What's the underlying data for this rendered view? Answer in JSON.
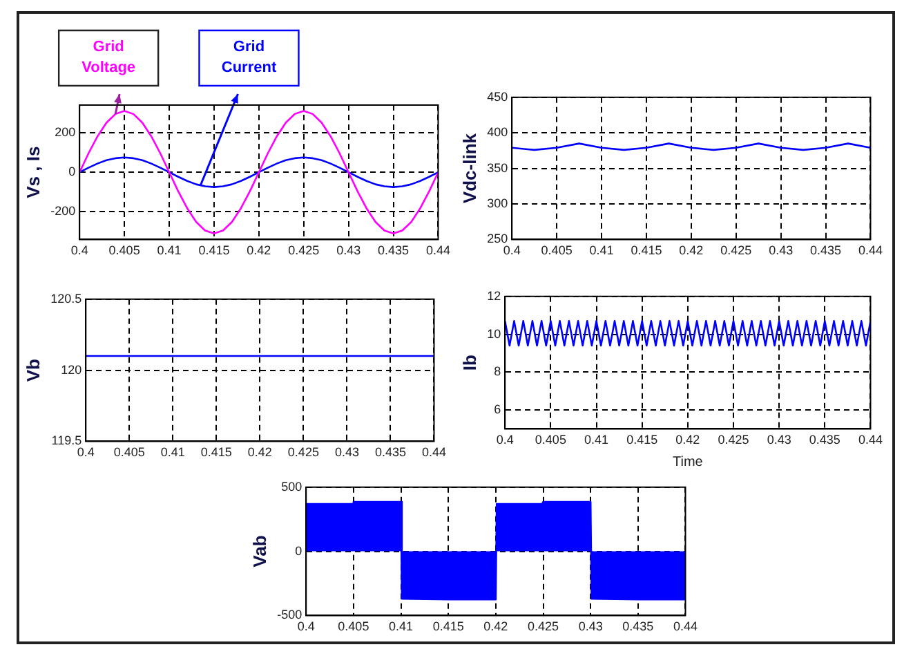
{
  "chart_data": [
    {
      "type": "line",
      "ylabel": "Vs , Is",
      "x": [
        0.4,
        0.401,
        0.402,
        0.403,
        0.404,
        0.405,
        0.406,
        0.407,
        0.408,
        0.409,
        0.41,
        0.411,
        0.412,
        0.413,
        0.414,
        0.415,
        0.416,
        0.417,
        0.418,
        0.419,
        0.42,
        0.421,
        0.422,
        0.423,
        0.424,
        0.425,
        0.426,
        0.427,
        0.428,
        0.429,
        0.43,
        0.431,
        0.432,
        0.433,
        0.434,
        0.435,
        0.436,
        0.437,
        0.438,
        0.439,
        0.44
      ],
      "series": [
        {
          "color": "#ff00ff",
          "values": [
            0,
            96,
            182,
            251,
            295,
            310,
            295,
            251,
            182,
            96,
            0,
            -96,
            -182,
            -251,
            -295,
            -310,
            -295,
            -251,
            -182,
            -96,
            0,
            96,
            182,
            251,
            295,
            310,
            295,
            251,
            182,
            96,
            0,
            -96,
            -182,
            -251,
            -295,
            -310,
            -295,
            -251,
            -182,
            -96,
            0
          ]
        },
        {
          "color": "#0000ff",
          "values": [
            0,
            23,
            44,
            61,
            71,
            75,
            71,
            61,
            44,
            23,
            0,
            -23,
            -44,
            -61,
            -71,
            -75,
            -71,
            -61,
            -44,
            -23,
            0,
            23,
            44,
            61,
            71,
            75,
            71,
            61,
            44,
            23,
            0,
            -23,
            -44,
            -61,
            -71,
            -75,
            -71,
            -61,
            -44,
            -23,
            0
          ]
        }
      ],
      "annotations": [
        {
          "text": "Grid Voltage",
          "x": 0.404,
          "y": 295
        },
        {
          "text": "Grid Current",
          "x": 0.4135,
          "y": -65
        }
      ],
      "xlim": [
        0.4,
        0.44
      ],
      "xticks": [
        0.4,
        0.405,
        0.41,
        0.415,
        0.42,
        0.425,
        0.43,
        0.435,
        0.44
      ],
      "ylim": [
        -340,
        340
      ],
      "yticks": [
        -200,
        0,
        200
      ],
      "grid": true,
      "legend": false
    },
    {
      "type": "line",
      "ylabel": "Vdc-link",
      "x": [
        0.4,
        0.4025,
        0.405,
        0.4075,
        0.41,
        0.4125,
        0.415,
        0.4175,
        0.42,
        0.4225,
        0.425,
        0.4275,
        0.43,
        0.4325,
        0.435,
        0.4375,
        0.44
      ],
      "series": [
        {
          "color": "#0000ff",
          "values": [
            379,
            376,
            379,
            385,
            379,
            376,
            379,
            385,
            379,
            376,
            379,
            385,
            379,
            376,
            379,
            385,
            379
          ]
        }
      ],
      "xlim": [
        0.4,
        0.44
      ],
      "xticks": [
        0.4,
        0.405,
        0.41,
        0.415,
        0.42,
        0.425,
        0.43,
        0.435,
        0.44
      ],
      "ylim": [
        250,
        450
      ],
      "yticks": [
        250,
        300,
        350,
        400,
        450
      ],
      "grid": true,
      "legend": false
    },
    {
      "type": "line",
      "ylabel": "Vb",
      "x": [
        0.4,
        0.44
      ],
      "series": [
        {
          "color": "#0000ff",
          "values": [
            120.1,
            120.1
          ]
        }
      ],
      "xlim": [
        0.4,
        0.44
      ],
      "xticks": [
        0.4,
        0.405,
        0.41,
        0.415,
        0.42,
        0.425,
        0.43,
        0.435,
        0.44
      ],
      "ylim": [
        119.5,
        120.5
      ],
      "yticks": [
        119.5,
        120,
        120.5
      ],
      "grid": true,
      "legend": false
    },
    {
      "type": "line",
      "ylabel": "Ib",
      "xlabel": "Time",
      "x": [
        0.4,
        0.4005,
        0.401,
        0.4015,
        0.402,
        0.4025,
        0.403,
        0.4035,
        0.404,
        0.4045,
        0.405,
        0.4055,
        0.406,
        0.4065,
        0.407,
        0.4075,
        0.408,
        0.4085,
        0.409,
        0.4095,
        0.41,
        0.4105,
        0.411,
        0.4115,
        0.412,
        0.4125,
        0.413,
        0.4135,
        0.414,
        0.4145,
        0.415,
        0.4155,
        0.416,
        0.4165,
        0.417,
        0.4175,
        0.418,
        0.4185,
        0.419,
        0.4195,
        0.42,
        0.4205,
        0.421,
        0.4215,
        0.422,
        0.4225,
        0.423,
        0.4235,
        0.424,
        0.4245,
        0.425,
        0.4255,
        0.426,
        0.4265,
        0.427,
        0.4275,
        0.428,
        0.4285,
        0.429,
        0.4295,
        0.43,
        0.4305,
        0.431,
        0.4315,
        0.432,
        0.4325,
        0.433,
        0.4335,
        0.434,
        0.4345,
        0.435,
        0.4355,
        0.436,
        0.4365,
        0.437,
        0.4375,
        0.438,
        0.4385,
        0.439,
        0.4395,
        0.44
      ],
      "series": [
        {
          "color": "#0000ff",
          "values": [
            10.7,
            9.4,
            10.7,
            9.4,
            10.7,
            9.4,
            10.7,
            9.4,
            10.7,
            9.4,
            10.7,
            9.4,
            10.7,
            9.4,
            10.7,
            9.4,
            10.7,
            9.4,
            10.7,
            9.4,
            10.7,
            9.4,
            10.7,
            9.4,
            10.7,
            9.4,
            10.7,
            9.4,
            10.7,
            9.4,
            10.7,
            9.4,
            10.7,
            9.4,
            10.7,
            9.4,
            10.7,
            9.4,
            10.7,
            9.4,
            10.7,
            9.4,
            10.7,
            9.4,
            10.7,
            9.4,
            10.7,
            9.4,
            10.7,
            9.4,
            10.7,
            9.4,
            10.7,
            9.4,
            10.7,
            9.4,
            10.7,
            9.4,
            10.7,
            9.4,
            10.7,
            9.4,
            10.7,
            9.4,
            10.7,
            9.4,
            10.7,
            9.4,
            10.7,
            9.4,
            10.7,
            9.4,
            10.7,
            9.4,
            10.7,
            9.4,
            10.7,
            9.4,
            10.7,
            9.4,
            10.7
          ]
        }
      ],
      "xlim": [
        0.4,
        0.44
      ],
      "xticks": [
        0.4,
        0.405,
        0.41,
        0.415,
        0.42,
        0.425,
        0.43,
        0.435,
        0.44
      ],
      "ylim": [
        5,
        12
      ],
      "yticks": [
        6,
        8,
        10,
        12
      ],
      "grid": true,
      "legend": false
    },
    {
      "type": "area",
      "ylabel": "Vab",
      "x": [
        0.4,
        0.4049,
        0.405,
        0.41,
        0.4101,
        0.415,
        0.42,
        0.4201,
        0.4249,
        0.425,
        0.43,
        0.4301,
        0.435,
        0.44
      ],
      "series": [
        {
          "color": "#0000ff",
          "values": [
            370,
            370,
            385,
            385,
            -370,
            -375,
            -375,
            370,
            370,
            385,
            385,
            -370,
            -375,
            -375
          ]
        }
      ],
      "xlim": [
        0.4,
        0.44
      ],
      "xticks": [
        0.4,
        0.405,
        0.41,
        0.415,
        0.42,
        0.425,
        0.43,
        0.435,
        0.44
      ],
      "ylim": [
        -500,
        500
      ],
      "yticks": [
        -500,
        0,
        500
      ],
      "grid": true,
      "legend": false
    }
  ]
}
